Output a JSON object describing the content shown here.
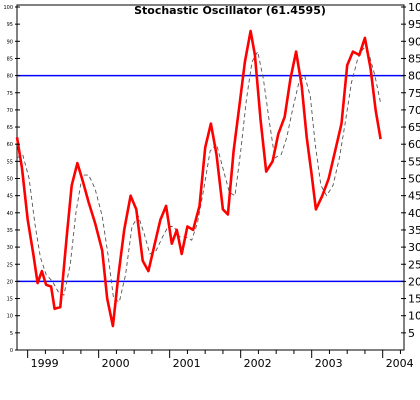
{
  "chart_data": {
    "type": "line",
    "title": "Stochastic Oscillator (61.4595)",
    "xlabel": "",
    "ylabel": "",
    "ylim": [
      0,
      100
    ],
    "xlim": [
      1998.85,
      2004.3
    ],
    "yticks": [
      5,
      10,
      15,
      20,
      25,
      30,
      35,
      40,
      45,
      50,
      55,
      60,
      65,
      70,
      75,
      80,
      85,
      90,
      95,
      100
    ],
    "left_ticks": [
      0,
      5,
      10,
      15,
      20,
      25,
      30,
      35,
      40,
      45,
      50,
      55,
      60,
      65,
      70,
      75,
      80,
      85,
      90,
      95,
      100
    ],
    "xticks": [
      {
        "label": "1999",
        "x": 1999.0
      },
      {
        "label": "2000",
        "x": 2000.0
      },
      {
        "label": "2001",
        "x": 2001.0
      },
      {
        "label": "2002",
        "x": 2002.0
      },
      {
        "label": "2003",
        "x": 2003.0
      },
      {
        "label": "2004",
        "x": 2004.0
      }
    ],
    "reference_lines": [
      {
        "y": 80,
        "color": "#0000ff"
      },
      {
        "y": 20,
        "color": "#0000ff"
      }
    ],
    "series": [
      {
        "style": "solid",
        "color": "#ff0000",
        "points": [
          [
            1998.85,
            62
          ],
          [
            1998.92,
            53
          ],
          [
            1999.0,
            38
          ],
          [
            1999.08,
            28
          ],
          [
            1999.14,
            19.5
          ],
          [
            1999.2,
            23
          ],
          [
            1999.26,
            19
          ],
          [
            1999.33,
            18.5
          ],
          [
            1999.38,
            12
          ],
          [
            1999.46,
            12.5
          ],
          [
            1999.55,
            33
          ],
          [
            1999.62,
            48
          ],
          [
            1999.7,
            54.5
          ],
          [
            1999.78,
            49
          ],
          [
            1999.86,
            43
          ],
          [
            1999.95,
            37
          ],
          [
            2000.05,
            29
          ],
          [
            2000.12,
            15
          ],
          [
            2000.2,
            7
          ],
          [
            2000.28,
            22
          ],
          [
            2000.36,
            35
          ],
          [
            2000.45,
            45
          ],
          [
            2000.53,
            41
          ],
          [
            2000.62,
            26
          ],
          [
            2000.7,
            23
          ],
          [
            2000.78,
            30
          ],
          [
            2000.87,
            38
          ],
          [
            2000.95,
            42
          ],
          [
            2001.03,
            31
          ],
          [
            2001.1,
            35
          ],
          [
            2001.17,
            28
          ],
          [
            2001.25,
            36
          ],
          [
            2001.33,
            35
          ],
          [
            2001.42,
            42
          ],
          [
            2001.5,
            59
          ],
          [
            2001.58,
            66
          ],
          [
            2001.66,
            57
          ],
          [
            2001.75,
            41
          ],
          [
            2001.82,
            39.5
          ],
          [
            2001.9,
            58
          ],
          [
            2001.98,
            71
          ],
          [
            2002.06,
            84
          ],
          [
            2002.14,
            93
          ],
          [
            2002.2,
            86
          ],
          [
            2002.28,
            67
          ],
          [
            2002.36,
            52
          ],
          [
            2002.45,
            55
          ],
          [
            2002.53,
            63
          ],
          [
            2002.62,
            68
          ],
          [
            2002.7,
            79
          ],
          [
            2002.78,
            87
          ],
          [
            2002.86,
            77
          ],
          [
            2002.93,
            62
          ],
          [
            2003.0,
            51
          ],
          [
            2003.06,
            41
          ],
          [
            2003.15,
            45
          ],
          [
            2003.24,
            50
          ],
          [
            2003.33,
            58
          ],
          [
            2003.42,
            66
          ],
          [
            2003.5,
            83
          ],
          [
            2003.58,
            87
          ],
          [
            2003.67,
            86
          ],
          [
            2003.75,
            91
          ],
          [
            2003.83,
            82
          ],
          [
            2003.9,
            70
          ],
          [
            2003.97,
            61.5
          ]
        ]
      },
      {
        "style": "dashed",
        "color": "#555555",
        "points": [
          [
            1998.85,
            56
          ],
          [
            1998.93,
            57
          ],
          [
            1999.02,
            50
          ],
          [
            1999.1,
            37
          ],
          [
            1999.18,
            27
          ],
          [
            1999.26,
            22
          ],
          [
            1999.35,
            20
          ],
          [
            1999.43,
            17
          ],
          [
            1999.51,
            16
          ],
          [
            1999.6,
            25
          ],
          [
            1999.68,
            40
          ],
          [
            1999.77,
            51
          ],
          [
            1999.86,
            51
          ],
          [
            1999.95,
            47
          ],
          [
            2000.05,
            39
          ],
          [
            2000.13,
            28
          ],
          [
            2000.21,
            15
          ],
          [
            2000.29,
            14
          ],
          [
            2000.38,
            22
          ],
          [
            2000.47,
            36
          ],
          [
            2000.56,
            39
          ],
          [
            2000.64,
            34
          ],
          [
            2000.72,
            28
          ],
          [
            2000.81,
            29
          ],
          [
            2000.9,
            33
          ],
          [
            2000.98,
            36
          ],
          [
            2001.06,
            36
          ],
          [
            2001.14,
            33
          ],
          [
            2001.22,
            33
          ],
          [
            2001.31,
            32
          ],
          [
            2001.39,
            37
          ],
          [
            2001.48,
            47
          ],
          [
            2001.57,
            58
          ],
          [
            2001.66,
            60
          ],
          [
            2001.75,
            53
          ],
          [
            2001.84,
            46
          ],
          [
            2001.92,
            45
          ],
          [
            2002.0,
            58
          ],
          [
            2002.08,
            73
          ],
          [
            2002.16,
            84
          ],
          [
            2002.24,
            87
          ],
          [
            2002.32,
            79
          ],
          [
            2002.4,
            67
          ],
          [
            2002.48,
            56
          ],
          [
            2002.57,
            57
          ],
          [
            2002.65,
            62
          ],
          [
            2002.73,
            70
          ],
          [
            2002.82,
            78
          ],
          [
            2002.9,
            80
          ],
          [
            2002.98,
            74
          ],
          [
            2003.05,
            60
          ],
          [
            2003.13,
            48
          ],
          [
            2003.21,
            45
          ],
          [
            2003.3,
            48
          ],
          [
            2003.39,
            56
          ],
          [
            2003.47,
            66
          ],
          [
            2003.56,
            78
          ],
          [
            2003.65,
            85
          ],
          [
            2003.73,
            88
          ],
          [
            2003.81,
            86
          ],
          [
            2003.89,
            80
          ],
          [
            2003.97,
            72
          ]
        ]
      }
    ]
  }
}
